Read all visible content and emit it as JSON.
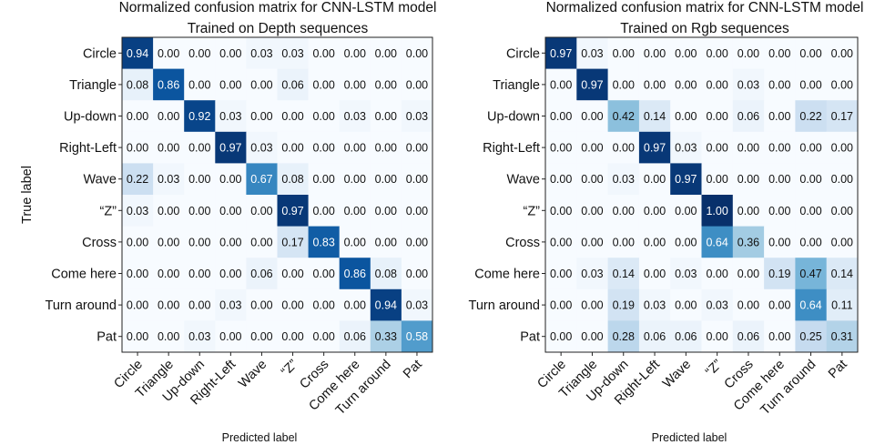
{
  "chart_data": [
    {
      "type": "heatmap",
      "title": "Normalized confusion matrix for CNN-LSTM model\nTrained on Depth sequences",
      "ylabel": "True label",
      "xlabel": "Predicted label",
      "row_labels": [
        "Circle",
        "Triangle",
        "Up-down",
        "Right-Left",
        "Wave",
        "“Z”",
        "Cross",
        "Come here",
        "Turn around",
        "Pat"
      ],
      "col_labels": [
        "Circle",
        "Triangle",
        "Up-down",
        "Right-Left",
        "Wave",
        "“Z”",
        "Cross",
        "Come here",
        "Turn around",
        "Pat"
      ],
      "value_range": [
        0,
        1
      ],
      "colormap": "Blues",
      "values": [
        [
          0.94,
          0.0,
          0.0,
          0.0,
          0.03,
          0.03,
          0.0,
          0.0,
          0.0,
          0.0
        ],
        [
          0.08,
          0.86,
          0.0,
          0.0,
          0.0,
          0.06,
          0.0,
          0.0,
          0.0,
          0.0
        ],
        [
          0.0,
          0.0,
          0.92,
          0.03,
          0.0,
          0.0,
          0.0,
          0.03,
          0.0,
          0.03
        ],
        [
          0.0,
          0.0,
          0.0,
          0.97,
          0.03,
          0.0,
          0.0,
          0.0,
          0.0,
          0.0
        ],
        [
          0.22,
          0.03,
          0.0,
          0.0,
          0.67,
          0.08,
          0.0,
          0.0,
          0.0,
          0.0
        ],
        [
          0.03,
          0.0,
          0.0,
          0.0,
          0.0,
          0.97,
          0.0,
          0.0,
          0.0,
          0.0
        ],
        [
          0.0,
          0.0,
          0.0,
          0.0,
          0.0,
          0.17,
          0.83,
          0.0,
          0.0,
          0.0
        ],
        [
          0.0,
          0.0,
          0.0,
          0.0,
          0.06,
          0.0,
          0.0,
          0.86,
          0.08,
          0.0
        ],
        [
          0.0,
          0.0,
          0.0,
          0.03,
          0.0,
          0.0,
          0.0,
          0.0,
          0.94,
          0.03
        ],
        [
          0.0,
          0.0,
          0.03,
          0.0,
          0.0,
          0.0,
          0.0,
          0.06,
          0.33,
          0.58
        ]
      ]
    },
    {
      "type": "heatmap",
      "title": "Normalized confusion matrix for CNN-LSTM model\nTrained on Rgb sequences",
      "ylabel": "",
      "xlabel": "Predicted label",
      "row_labels": [
        "Circle",
        "Triangle",
        "Up-down",
        "Right-Left",
        "Wave",
        "“Z”",
        "Cross",
        "Come here",
        "Turn around",
        "Pat"
      ],
      "col_labels": [
        "Circle",
        "Triangle",
        "Up-down",
        "Right-Left",
        "Wave",
        "“Z”",
        "Cross",
        "Come here",
        "Turn around",
        "Pat"
      ],
      "value_range": [
        0,
        1
      ],
      "colormap": "Blues",
      "values": [
        [
          0.97,
          0.03,
          0.0,
          0.0,
          0.0,
          0.0,
          0.0,
          0.0,
          0.0,
          0.0
        ],
        [
          0.0,
          0.97,
          0.0,
          0.0,
          0.0,
          0.0,
          0.03,
          0.0,
          0.0,
          0.0
        ],
        [
          0.0,
          0.0,
          0.42,
          0.14,
          0.0,
          0.0,
          0.06,
          0.0,
          0.22,
          0.17
        ],
        [
          0.0,
          0.0,
          0.0,
          0.97,
          0.03,
          0.0,
          0.0,
          0.0,
          0.0,
          0.0
        ],
        [
          0.0,
          0.0,
          0.03,
          0.0,
          0.97,
          0.0,
          0.0,
          0.0,
          0.0,
          0.0
        ],
        [
          0.0,
          0.0,
          0.0,
          0.0,
          0.0,
          1.0,
          0.0,
          0.0,
          0.0,
          0.0
        ],
        [
          0.0,
          0.0,
          0.0,
          0.0,
          0.0,
          0.64,
          0.36,
          0.0,
          0.0,
          0.0
        ],
        [
          0.0,
          0.03,
          0.14,
          0.0,
          0.03,
          0.0,
          0.0,
          0.19,
          0.47,
          0.14
        ],
        [
          0.0,
          0.0,
          0.19,
          0.03,
          0.0,
          0.03,
          0.0,
          0.0,
          0.64,
          0.11
        ],
        [
          0.0,
          0.0,
          0.28,
          0.06,
          0.06,
          0.0,
          0.06,
          0.0,
          0.25,
          0.31
        ]
      ]
    }
  ]
}
